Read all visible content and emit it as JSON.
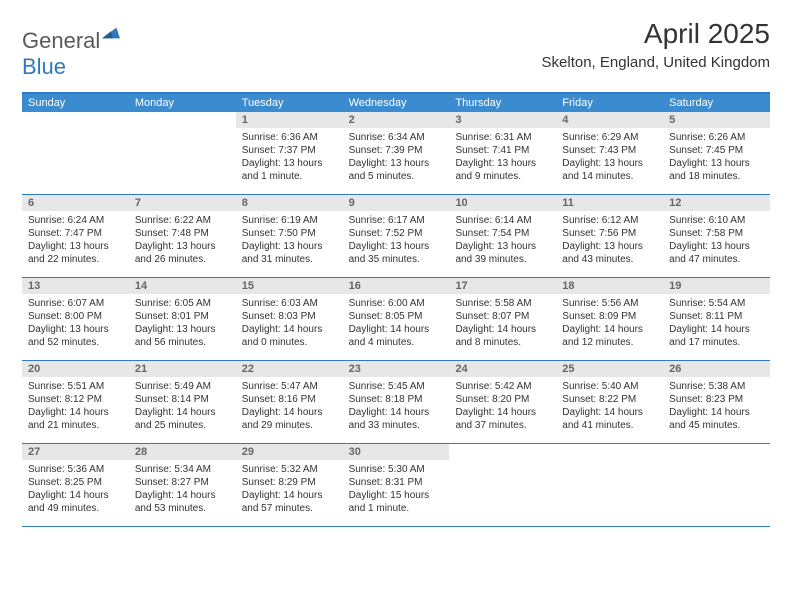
{
  "logo": {
    "general": "General",
    "blue": "Blue"
  },
  "title": "April 2025",
  "location": "Skelton, England, United Kingdom",
  "colors": {
    "header_band": "#3a8bcf",
    "rule": "#2f7ac0",
    "daynum_bg": "#e7e7e7",
    "text": "#333333"
  },
  "dow": [
    "Sunday",
    "Monday",
    "Tuesday",
    "Wednesday",
    "Thursday",
    "Friday",
    "Saturday"
  ],
  "weeks": [
    [
      {
        "n": "",
        "sr": "",
        "ss": "",
        "dl": ""
      },
      {
        "n": "",
        "sr": "",
        "ss": "",
        "dl": ""
      },
      {
        "n": "1",
        "sr": "Sunrise: 6:36 AM",
        "ss": "Sunset: 7:37 PM",
        "dl": "Daylight: 13 hours and 1 minute."
      },
      {
        "n": "2",
        "sr": "Sunrise: 6:34 AM",
        "ss": "Sunset: 7:39 PM",
        "dl": "Daylight: 13 hours and 5 minutes."
      },
      {
        "n": "3",
        "sr": "Sunrise: 6:31 AM",
        "ss": "Sunset: 7:41 PM",
        "dl": "Daylight: 13 hours and 9 minutes."
      },
      {
        "n": "4",
        "sr": "Sunrise: 6:29 AM",
        "ss": "Sunset: 7:43 PM",
        "dl": "Daylight: 13 hours and 14 minutes."
      },
      {
        "n": "5",
        "sr": "Sunrise: 6:26 AM",
        "ss": "Sunset: 7:45 PM",
        "dl": "Daylight: 13 hours and 18 minutes."
      }
    ],
    [
      {
        "n": "6",
        "sr": "Sunrise: 6:24 AM",
        "ss": "Sunset: 7:47 PM",
        "dl": "Daylight: 13 hours and 22 minutes."
      },
      {
        "n": "7",
        "sr": "Sunrise: 6:22 AM",
        "ss": "Sunset: 7:48 PM",
        "dl": "Daylight: 13 hours and 26 minutes."
      },
      {
        "n": "8",
        "sr": "Sunrise: 6:19 AM",
        "ss": "Sunset: 7:50 PM",
        "dl": "Daylight: 13 hours and 31 minutes."
      },
      {
        "n": "9",
        "sr": "Sunrise: 6:17 AM",
        "ss": "Sunset: 7:52 PM",
        "dl": "Daylight: 13 hours and 35 minutes."
      },
      {
        "n": "10",
        "sr": "Sunrise: 6:14 AM",
        "ss": "Sunset: 7:54 PM",
        "dl": "Daylight: 13 hours and 39 minutes."
      },
      {
        "n": "11",
        "sr": "Sunrise: 6:12 AM",
        "ss": "Sunset: 7:56 PM",
        "dl": "Daylight: 13 hours and 43 minutes."
      },
      {
        "n": "12",
        "sr": "Sunrise: 6:10 AM",
        "ss": "Sunset: 7:58 PM",
        "dl": "Daylight: 13 hours and 47 minutes."
      }
    ],
    [
      {
        "n": "13",
        "sr": "Sunrise: 6:07 AM",
        "ss": "Sunset: 8:00 PM",
        "dl": "Daylight: 13 hours and 52 minutes."
      },
      {
        "n": "14",
        "sr": "Sunrise: 6:05 AM",
        "ss": "Sunset: 8:01 PM",
        "dl": "Daylight: 13 hours and 56 minutes."
      },
      {
        "n": "15",
        "sr": "Sunrise: 6:03 AM",
        "ss": "Sunset: 8:03 PM",
        "dl": "Daylight: 14 hours and 0 minutes."
      },
      {
        "n": "16",
        "sr": "Sunrise: 6:00 AM",
        "ss": "Sunset: 8:05 PM",
        "dl": "Daylight: 14 hours and 4 minutes."
      },
      {
        "n": "17",
        "sr": "Sunrise: 5:58 AM",
        "ss": "Sunset: 8:07 PM",
        "dl": "Daylight: 14 hours and 8 minutes."
      },
      {
        "n": "18",
        "sr": "Sunrise: 5:56 AM",
        "ss": "Sunset: 8:09 PM",
        "dl": "Daylight: 14 hours and 12 minutes."
      },
      {
        "n": "19",
        "sr": "Sunrise: 5:54 AM",
        "ss": "Sunset: 8:11 PM",
        "dl": "Daylight: 14 hours and 17 minutes."
      }
    ],
    [
      {
        "n": "20",
        "sr": "Sunrise: 5:51 AM",
        "ss": "Sunset: 8:12 PM",
        "dl": "Daylight: 14 hours and 21 minutes."
      },
      {
        "n": "21",
        "sr": "Sunrise: 5:49 AM",
        "ss": "Sunset: 8:14 PM",
        "dl": "Daylight: 14 hours and 25 minutes."
      },
      {
        "n": "22",
        "sr": "Sunrise: 5:47 AM",
        "ss": "Sunset: 8:16 PM",
        "dl": "Daylight: 14 hours and 29 minutes."
      },
      {
        "n": "23",
        "sr": "Sunrise: 5:45 AM",
        "ss": "Sunset: 8:18 PM",
        "dl": "Daylight: 14 hours and 33 minutes."
      },
      {
        "n": "24",
        "sr": "Sunrise: 5:42 AM",
        "ss": "Sunset: 8:20 PM",
        "dl": "Daylight: 14 hours and 37 minutes."
      },
      {
        "n": "25",
        "sr": "Sunrise: 5:40 AM",
        "ss": "Sunset: 8:22 PM",
        "dl": "Daylight: 14 hours and 41 minutes."
      },
      {
        "n": "26",
        "sr": "Sunrise: 5:38 AM",
        "ss": "Sunset: 8:23 PM",
        "dl": "Daylight: 14 hours and 45 minutes."
      }
    ],
    [
      {
        "n": "27",
        "sr": "Sunrise: 5:36 AM",
        "ss": "Sunset: 8:25 PM",
        "dl": "Daylight: 14 hours and 49 minutes."
      },
      {
        "n": "28",
        "sr": "Sunrise: 5:34 AM",
        "ss": "Sunset: 8:27 PM",
        "dl": "Daylight: 14 hours and 53 minutes."
      },
      {
        "n": "29",
        "sr": "Sunrise: 5:32 AM",
        "ss": "Sunset: 8:29 PM",
        "dl": "Daylight: 14 hours and 57 minutes."
      },
      {
        "n": "30",
        "sr": "Sunrise: 5:30 AM",
        "ss": "Sunset: 8:31 PM",
        "dl": "Daylight: 15 hours and 1 minute."
      },
      {
        "n": "",
        "sr": "",
        "ss": "",
        "dl": ""
      },
      {
        "n": "",
        "sr": "",
        "ss": "",
        "dl": ""
      },
      {
        "n": "",
        "sr": "",
        "ss": "",
        "dl": ""
      }
    ]
  ]
}
